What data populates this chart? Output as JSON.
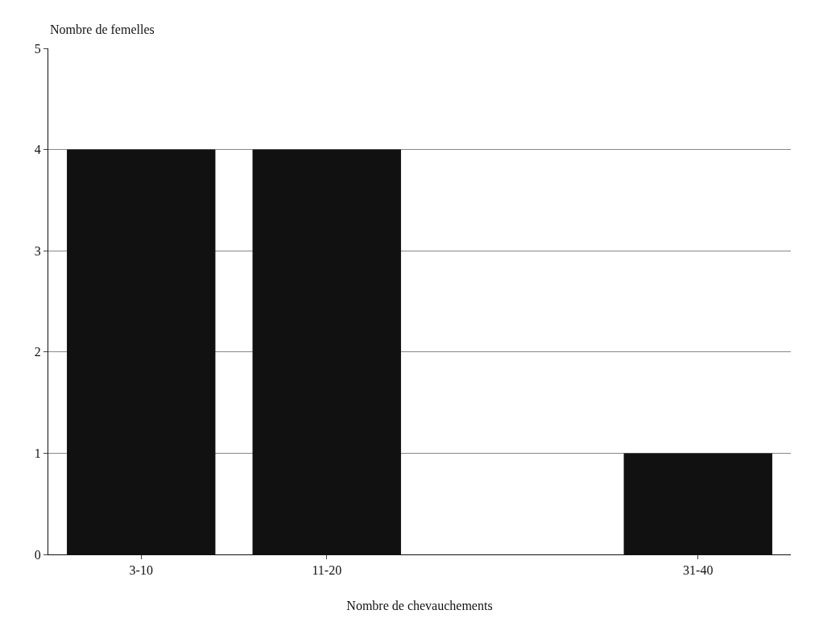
{
  "chart_data": {
    "type": "bar",
    "categories": [
      "3-10",
      "11-20",
      null,
      "31-40"
    ],
    "values": [
      4,
      4,
      0,
      1
    ],
    "color": "#111111",
    "ylabel": "Nombre de femelles",
    "xlabel": "Nombre de chevauchements",
    "ylim": [
      0,
      5
    ],
    "yticks": [
      0,
      1,
      2,
      3,
      4,
      5
    ],
    "grid": "y",
    "legend": false
  }
}
